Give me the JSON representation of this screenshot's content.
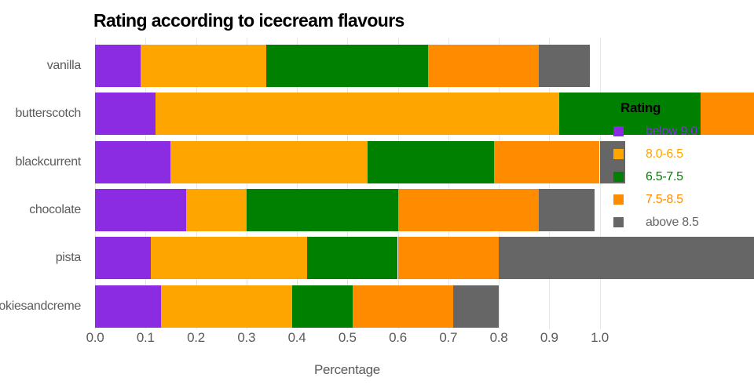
{
  "title": "Rating according to icecream flavours",
  "legend": {
    "title": "Rating",
    "items": [
      {
        "label": "below 9.0",
        "color": "#8B2BE2"
      },
      {
        "label": "8.0-6.5",
        "color": "#FFA500"
      },
      {
        "label": "6.5-7.5",
        "color": "#008000"
      },
      {
        "label": "7.5-8.5",
        "color": "#FF8C00"
      },
      {
        "label": "above 8.5",
        "color": "#666666"
      }
    ]
  },
  "chart_data": {
    "type": "bar",
    "orientation": "horizontal",
    "stacked": true,
    "title": "Rating according to icecream flavours",
    "xlabel": "Percentage",
    "ylabel": "",
    "categories": [
      "vanilla",
      "butterscotch",
      "blackcurrent",
      "chocolate",
      "pista",
      "cookiesandcreme"
    ],
    "series": [
      {
        "name": "below 9.0",
        "color": "#8B2BE2",
        "values": [
          0.09,
          0.12,
          0.15,
          0.18,
          0.11,
          0.13
        ]
      },
      {
        "name": "8.0-6.5",
        "color": "#FFA500",
        "values": [
          0.25,
          0.8,
          0.39,
          0.12,
          0.31,
          0.26
        ]
      },
      {
        "name": "6.5-7.5",
        "color": "#008000",
        "values": [
          0.32,
          0.28,
          0.25,
          0.3,
          0.18,
          0.12
        ]
      },
      {
        "name": "7.5-8.5",
        "color": "#FF8C00",
        "values": [
          0.22,
          0.15,
          0.21,
          0.28,
          0.2,
          0.2
        ]
      },
      {
        "name": "above 8.5",
        "color": "#666666",
        "values": [
          0.1,
          0.0,
          0.05,
          0.11,
          0.55,
          0.09
        ]
      }
    ],
    "x_ticks": [
      "0.0",
      "0.1",
      "0.2",
      "0.3",
      "0.4",
      "0.5",
      "0.6",
      "0.7",
      "0.8",
      "0.9",
      "1.0"
    ],
    "x_tick_values": [
      0.0,
      0.1,
      0.2,
      0.3,
      0.4,
      0.5,
      0.6,
      0.7,
      0.8,
      0.9,
      1.0
    ],
    "x_axis_labeled_range": [
      0.0,
      1.0
    ],
    "x_visible_max_clipped": 1.31,
    "grid": true,
    "legend_position": "overlay-right"
  }
}
